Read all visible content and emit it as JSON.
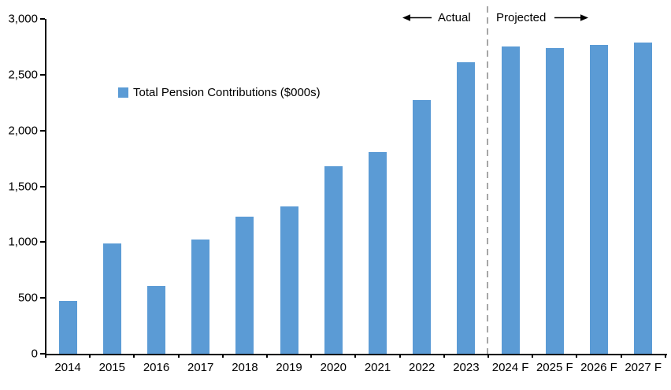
{
  "chart_data": {
    "type": "bar",
    "title": "",
    "series_name": "Total Pension Contributions ($000s)",
    "categories": [
      "2014",
      "2015",
      "2016",
      "2017",
      "2018",
      "2019",
      "2020",
      "2021",
      "2022",
      "2023",
      "2024 F",
      "2025 F",
      "2026 F",
      "2027 F"
    ],
    "values": [
      470,
      990,
      610,
      1020,
      1230,
      1320,
      1680,
      1810,
      2270,
      2610,
      2750,
      2740,
      2765,
      2790
    ],
    "xlabel": "",
    "ylabel": "",
    "ylim": [
      0,
      3000
    ],
    "y_tick_step": 500,
    "y_tick_labels": [
      "0",
      "500",
      "1,000",
      "1,500",
      "2,000",
      "2,500",
      "3,000"
    ],
    "grid": false,
    "legend_position": "inside-upper-left",
    "bar_color": "#5b9bd5",
    "axis_color": "#000000",
    "annotations": {
      "actual_label": "Actual",
      "projected_label": "Projected",
      "divider_after_category": "2023",
      "divider_color": "#a6a6a6"
    }
  }
}
